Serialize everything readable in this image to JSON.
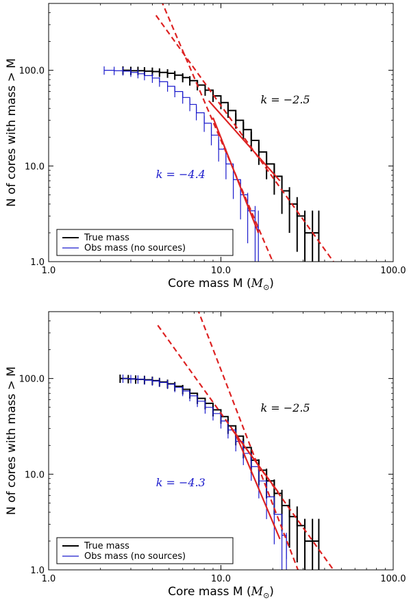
{
  "chart_data": [
    {
      "type": "line",
      "xlabel": "Core mass M (",
      "xlabel_math": "M",
      "xlabel_sub": "⊙",
      "xlabel_close": ")",
      "ylabel": "N of cores with mass > M",
      "xscale": "log",
      "yscale": "log",
      "xlim": [
        1.0,
        100.0
      ],
      "ylim": [
        1.0,
        500.0
      ],
      "xticks": [
        1.0,
        10.0,
        100.0
      ],
      "xtick_labels": [
        "1.0",
        "10.0",
        "100.0"
      ],
      "yticks": [
        1.0,
        10.0,
        100.0
      ],
      "ytick_labels": [
        "1.0",
        "10.0",
        "100.0"
      ],
      "legend_position": "lower-left",
      "annotations": [
        {
          "text": "k = −2.5",
          "x": 17.0,
          "y": 45.0,
          "color": "#000000"
        },
        {
          "text": "k = −4.4",
          "x": 4.2,
          "y": 7.5,
          "color": "#1a1acc"
        }
      ],
      "series": [
        {
          "name": "True mass",
          "color": "#000000",
          "style": "step",
          "x": [
            2.7,
            3.0,
            3.3,
            3.6,
            4.0,
            4.4,
            4.9,
            5.4,
            6.0,
            6.6,
            7.3,
            8.1,
            9.0,
            10.0,
            11.0,
            12.2,
            13.5,
            15.0,
            16.6,
            18.4,
            20.4,
            22.6,
            25.0,
            27.7,
            30.7,
            34.0,
            37.0
          ],
          "y": [
            100,
            99,
            99,
            98,
            97,
            95,
            93,
            89,
            84,
            78,
            70,
            62,
            54,
            46,
            38,
            30,
            24,
            18.5,
            14,
            10.5,
            7.8,
            5.5,
            4.0,
            3.0,
            2.0,
            2.0,
            2.0
          ]
        },
        {
          "name": "Obs mass (no sources)",
          "color": "#1a1acc",
          "style": "step",
          "x": [
            2.1,
            2.4,
            2.7,
            3.0,
            3.3,
            3.6,
            4.0,
            4.4,
            4.9,
            5.4,
            6.0,
            6.6,
            7.2,
            8.0,
            8.8,
            9.7,
            10.7,
            11.8,
            13.0,
            14.3,
            15.8,
            16.5
          ],
          "y": [
            100,
            99,
            98,
            95,
            92,
            88,
            83,
            76,
            68,
            60,
            52,
            44,
            36,
            28,
            21,
            15,
            10.5,
            7.2,
            5.0,
            3.4,
            2.3,
            2.0
          ]
        },
        {
          "name": "Red fit (k=-2.5)",
          "color": "#dd2222",
          "style": "solid",
          "x": [
            8.5,
            22.0
          ],
          "y": [
            48,
            7.0
          ]
        },
        {
          "name": "Red fit (k=-4.4)",
          "color": "#dd2222",
          "style": "solid",
          "x": [
            9.0,
            16.5
          ],
          "y": [
            32,
            2.0
          ]
        },
        {
          "name": "Red extrapolation (k=-2.5)",
          "color": "#dd2222",
          "style": "dashed",
          "x": [
            4.2,
            45.0
          ],
          "y": [
            375,
            1.0
          ]
        },
        {
          "name": "Red extrapolation (k=-4.4)",
          "color": "#dd2222",
          "style": "dashed",
          "x": [
            4.5,
            20.0
          ],
          "y": [
            540,
            1.0
          ]
        }
      ],
      "legend_entries": [
        "True mass",
        "Obs mass (no sources)"
      ]
    },
    {
      "type": "line",
      "xlabel": "Core mass M (",
      "xlabel_math": "M",
      "xlabel_sub": "⊙",
      "xlabel_close": ")",
      "ylabel": "N of cores with mass > M",
      "xscale": "log",
      "yscale": "log",
      "xlim": [
        1.0,
        100.0
      ],
      "ylim": [
        1.0,
        500.0
      ],
      "xticks": [
        1.0,
        10.0,
        100.0
      ],
      "xtick_labels": [
        "1.0",
        "10.0",
        "100.0"
      ],
      "yticks": [
        1.0,
        10.0,
        100.0
      ],
      "ytick_labels": [
        "1.0",
        "10.0",
        "100.0"
      ],
      "legend_position": "lower-left",
      "annotations": [
        {
          "text": "k = −2.5",
          "x": 17.0,
          "y": 45.0,
          "color": "#000000"
        },
        {
          "text": "k = −4.3",
          "x": 4.2,
          "y": 7.5,
          "color": "#1a1acc"
        }
      ],
      "series": [
        {
          "name": "True mass",
          "color": "#000000",
          "style": "step",
          "x": [
            2.6,
            2.9,
            3.2,
            3.6,
            4.0,
            4.4,
            4.9,
            5.4,
            6.0,
            6.6,
            7.3,
            8.1,
            9.0,
            10.0,
            11.0,
            12.2,
            13.5,
            15.0,
            16.6,
            18.4,
            20.4,
            22.6,
            25.0,
            27.7,
            30.7,
            34.0,
            37.0
          ],
          "y": [
            100,
            99,
            98,
            97,
            95,
            92,
            88,
            83,
            77,
            70,
            62,
            55,
            47,
            40,
            32,
            25,
            19,
            14,
            11,
            8.5,
            6.3,
            4.7,
            3.6,
            2.9,
            2.0,
            2.0,
            2.0
          ]
        },
        {
          "name": "Obs mass (no sources)",
          "color": "#1a1acc",
          "style": "step",
          "x": [
            2.7,
            3.0,
            3.3,
            3.6,
            4.0,
            4.4,
            4.9,
            5.4,
            6.0,
            6.6,
            7.3,
            8.1,
            9.0,
            10.0,
            11.0,
            12.2,
            13.5,
            15.0,
            16.6,
            18.4,
            20.4,
            22.6,
            24.0
          ],
          "y": [
            100,
            99,
            98,
            96,
            94,
            91,
            87,
            81,
            74,
            66,
            58,
            50,
            43,
            36,
            29,
            22,
            16.5,
            12,
            8.5,
            5.8,
            3.8,
            2.3,
            1.3
          ]
        },
        {
          "name": "Red fit (k=-2.5)",
          "color": "#dd2222",
          "style": "solid",
          "x": [
            11.5,
            21.5
          ],
          "y": [
            30,
            6.5
          ]
        },
        {
          "name": "Red fit (k=-4.3)",
          "color": "#dd2222",
          "style": "solid",
          "x": [
            12.0,
            22.0
          ],
          "y": [
            28,
            2.1
          ]
        },
        {
          "name": "Red extrapolation (k=-2.5)",
          "color": "#dd2222",
          "style": "dashed",
          "x": [
            4.3,
            45.0
          ],
          "y": [
            360,
            1.0
          ]
        },
        {
          "name": "Red extrapolation (k=-4.3)",
          "color": "#dd2222",
          "style": "dashed",
          "x": [
            7.3,
            28.0
          ],
          "y": [
            540,
            1.0
          ]
        }
      ],
      "legend_entries": [
        "True mass",
        "Obs mass (no sources)"
      ]
    }
  ]
}
